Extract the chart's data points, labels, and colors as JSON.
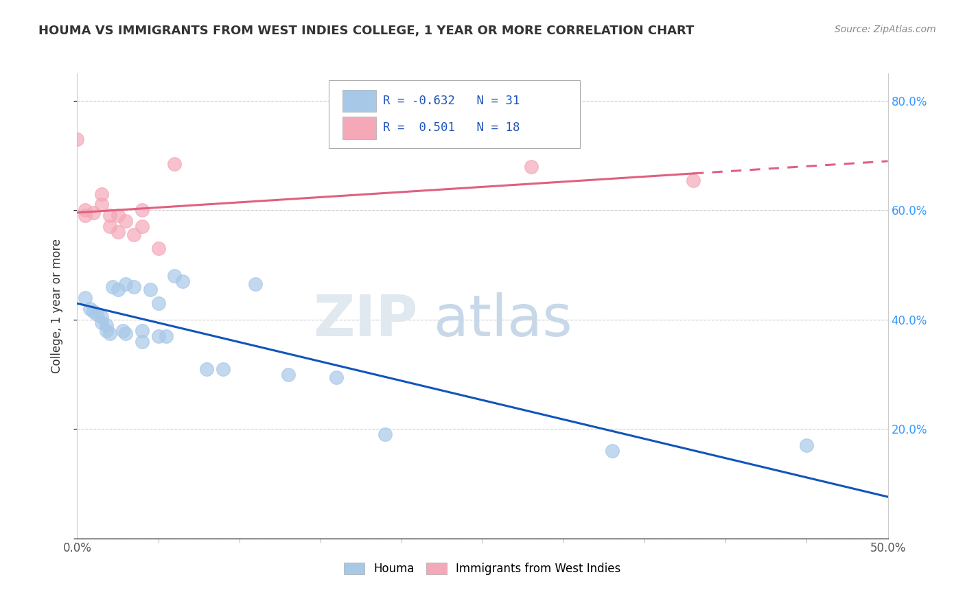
{
  "title": "HOUMA VS IMMIGRANTS FROM WEST INDIES COLLEGE, 1 YEAR OR MORE CORRELATION CHART",
  "source": "Source: ZipAtlas.com",
  "ylabel": "College, 1 year or more",
  "xlim": [
    0.0,
    50.0
  ],
  "ylim": [
    0.0,
    85.0
  ],
  "xticks_major": [
    0.0,
    50.0
  ],
  "xticks_minor": [
    0,
    5,
    10,
    15,
    20,
    25,
    30,
    35,
    40,
    45,
    50
  ],
  "xticklabels_major": [
    "0.0%",
    "50.0%"
  ],
  "yticks": [
    0.0,
    20.0,
    40.0,
    60.0,
    80.0
  ],
  "yticklabels": [
    "",
    "20.0%",
    "40.0%",
    "60.0%",
    "80.0%"
  ],
  "legend_labels": [
    "Houma",
    "Immigrants from West Indies"
  ],
  "houma_R": -0.632,
  "houma_N": 31,
  "westindies_R": 0.501,
  "westindies_N": 18,
  "houma_color": "#a8c8e8",
  "westindies_color": "#f4a8b8",
  "houma_line_color": "#1155bb",
  "westindies_line_color": "#e06080",
  "houma_x": [
    0.5,
    0.8,
    1.0,
    1.2,
    1.5,
    1.5,
    1.8,
    1.8,
    2.0,
    2.2,
    2.5,
    2.8,
    3.0,
    3.0,
    3.5,
    4.0,
    4.0,
    4.5,
    5.0,
    5.0,
    5.5,
    6.0,
    6.5,
    8.0,
    9.0,
    11.0,
    13.0,
    16.0,
    19.0,
    33.0,
    45.0
  ],
  "houma_y": [
    44.0,
    42.0,
    41.5,
    41.0,
    40.5,
    39.5,
    39.0,
    38.0,
    37.5,
    46.0,
    45.5,
    38.0,
    46.5,
    37.5,
    46.0,
    38.0,
    36.0,
    45.5,
    43.0,
    37.0,
    37.0,
    48.0,
    47.0,
    31.0,
    31.0,
    46.5,
    30.0,
    29.5,
    19.0,
    16.0,
    17.0
  ],
  "westindies_x": [
    0.0,
    0.5,
    0.5,
    1.0,
    1.5,
    1.5,
    2.0,
    2.0,
    2.5,
    2.5,
    3.0,
    3.5,
    4.0,
    4.0,
    5.0,
    6.0,
    28.0,
    38.0
  ],
  "westindies_y": [
    73.0,
    60.0,
    59.0,
    59.5,
    63.0,
    61.0,
    59.0,
    57.0,
    59.0,
    56.0,
    58.0,
    55.5,
    60.0,
    57.0,
    53.0,
    68.5,
    68.0,
    65.5
  ]
}
